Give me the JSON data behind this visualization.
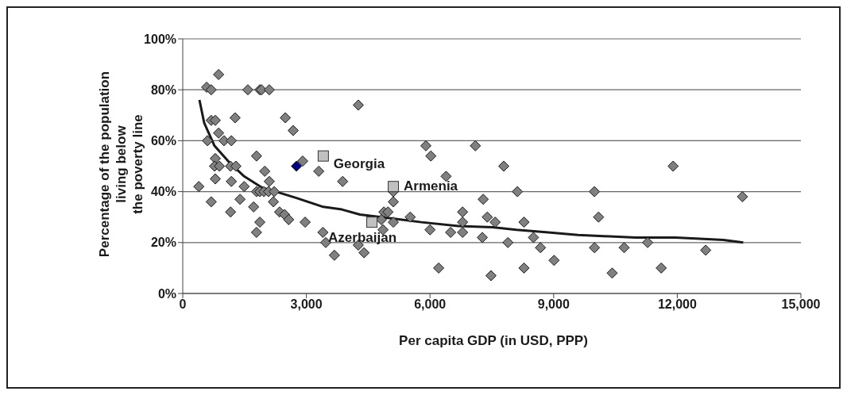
{
  "chart_data": {
    "type": "scatter",
    "xlabel": "Per capita GDP (in USD, PPP)",
    "ylabel": "Percentage of the population\nliving below\nthe poverty line",
    "xlim": [
      0,
      15000
    ],
    "xticks": [
      {
        "value": 0,
        "label": "0"
      },
      {
        "value": 3000,
        "label": "3,000"
      },
      {
        "value": 6000,
        "label": "6,000"
      },
      {
        "value": 9000,
        "label": "9,000"
      },
      {
        "value": 12000,
        "label": "12,000"
      },
      {
        "value": 15000,
        "label": "15,000"
      }
    ],
    "ylim": [
      0,
      100
    ],
    "yticks": [
      {
        "value": 0,
        "label": "0%"
      },
      {
        "value": 20,
        "label": "20%"
      },
      {
        "value": 40,
        "label": "40%"
      },
      {
        "value": 60,
        "label": "60%"
      },
      {
        "value": 80,
        "label": "80%"
      },
      {
        "value": 100,
        "label": "100%"
      }
    ],
    "grid": "y",
    "legend": false,
    "marker": "diamond",
    "series": [
      {
        "color": "#808080",
        "x": [
          870,
          580,
          690,
          1580,
          1870,
          1910,
          2100,
          690,
          790,
          1270,
          2490,
          2680,
          870,
          600,
          1000,
          1180,
          790,
          770,
          890,
          1160,
          1290,
          1790,
          2910,
          3300,
          1990,
          2100,
          790,
          1180,
          390,
          1490,
          1790,
          1870,
          1970,
          2080,
          2220,
          690,
          1390,
          1720,
          2200,
          1160,
          2350,
          2470,
          2570,
          2970,
          1870,
          1790,
          3400,
          3470,
          3680,
          4260,
          5900,
          6020,
          7100,
          3880,
          6390,
          5110,
          5110,
          7290,
          4880,
          4980,
          4820,
          5110,
          5520,
          6790,
          6790,
          7390,
          6000,
          6500,
          6790,
          7270,
          4860,
          4260,
          4400,
          6210,
          7480,
          7790,
          8120,
          9990,
          7580,
          8280,
          10090,
          8510,
          7890,
          8680,
          9010,
          9990,
          10710,
          8280,
          10420,
          11900,
          13580,
          11280,
          12690,
          11610
        ],
        "values": [
          86,
          81,
          80,
          80,
          80,
          80,
          80,
          68,
          68,
          69,
          69,
          64,
          63,
          60,
          60,
          60,
          53,
          50,
          50,
          50,
          50,
          54,
          52,
          48,
          48,
          44,
          45,
          44,
          42,
          42,
          40,
          40,
          40,
          40,
          40,
          36,
          37,
          34,
          36,
          32,
          32,
          31,
          29,
          28,
          28,
          24,
          24,
          20,
          15,
          74,
          58,
          54,
          58,
          44,
          46,
          40,
          36,
          37,
          32,
          32,
          29,
          28,
          30,
          32,
          28,
          30,
          25,
          24,
          24,
          22,
          25,
          19,
          16,
          10,
          7,
          50,
          40,
          40,
          28,
          28,
          30,
          22,
          20,
          18,
          13,
          18,
          18,
          10,
          8,
          50,
          38,
          20,
          17,
          10
        ]
      },
      {
        "color": "#000080",
        "x": [
          2760
        ],
        "values": [
          50
        ]
      },
      {
        "color": "#c0c0c0",
        "marker": "square",
        "x": [
          3410,
          5110,
          4590
        ],
        "values": [
          54,
          42,
          28
        ]
      },
      {
        "type": "line",
        "color": "#1a1a1a",
        "marker": "none",
        "x": [
          405,
          520,
          770,
          1100,
          1490,
          1930,
          2260,
          2760,
          3410,
          3860,
          4300,
          4820,
          5790,
          6690,
          7520,
          8100,
          8870,
          9590,
          10220,
          10990,
          11960,
          13120,
          13600
        ],
        "values": [
          76,
          67,
          58,
          52,
          46,
          41.5,
          40,
          37.5,
          34,
          33,
          31,
          30,
          28,
          26.5,
          26,
          25,
          24,
          23,
          22.5,
          22,
          22,
          21,
          20
        ]
      }
    ],
    "annotations": [
      {
        "text": "Georgia",
        "x": 3410,
        "y": 54
      },
      {
        "text": "Armenia",
        "x": 5110,
        "y": 42
      },
      {
        "text": "Azerbaijan",
        "x": 4590,
        "y": 28
      }
    ]
  }
}
